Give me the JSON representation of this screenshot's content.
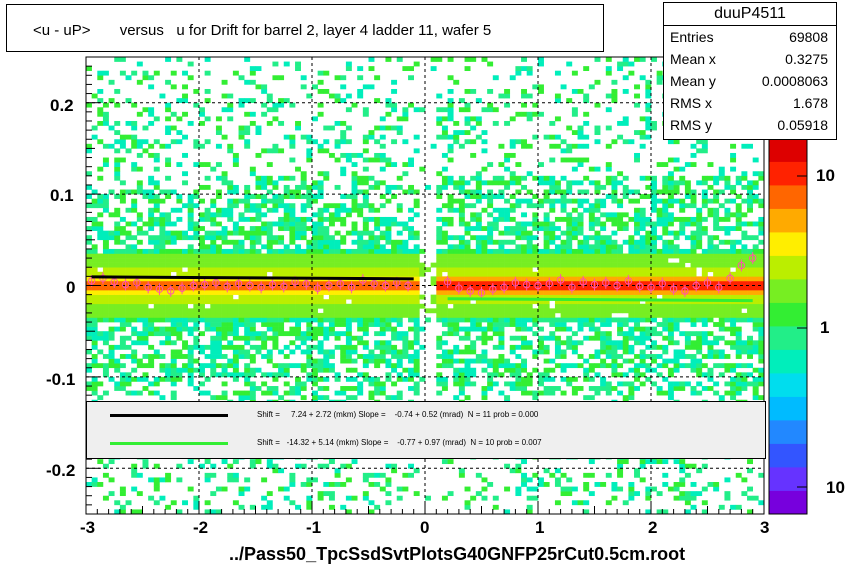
{
  "title": "<u - uP>       versus   u for Drift for barrel 2, layer 4 ladder 11, wafer 5",
  "footer": "../Pass50_TpcSsdSvtPlotsG40GNFP25rCut0.5cm.root",
  "stats": {
    "name": "duuP4511",
    "rows": [
      {
        "key": "Entries",
        "value": "69808"
      },
      {
        "key": "Mean x",
        "value": "0.3275"
      },
      {
        "key": "Mean y",
        "value": "0.0008063"
      },
      {
        "key": "RMS x",
        "value": "1.678"
      },
      {
        "key": "RMS y",
        "value": "0.05918"
      }
    ]
  },
  "legend": {
    "entries": [
      {
        "color": "#000000",
        "text": "Shift =     7.24 + 2.72 (mkm) Slope =    -0.74 + 0.52 (mrad)  N = 11 prob = 0.000"
      },
      {
        "color": "#33ee33",
        "text": "Shift =   -14.32 + 5.14 (mkm) Slope =    -0.77 + 0.97 (mrad)  N = 10 prob = 0.007"
      }
    ]
  },
  "colors": {
    "palette": [
      "#7700dd",
      "#6633ff",
      "#3355ff",
      "#2288ff",
      "#00bbff",
      "#00ddee",
      "#00eebb",
      "#22ee88",
      "#33ee33",
      "#77ee22",
      "#bbee00",
      "#ffee00",
      "#ffaa00",
      "#ff6600",
      "#ff2200",
      "#dd0000"
    ],
    "fit_line_1": "#000000",
    "fit_line_2": "#33ee33",
    "profile_markers": "#ff55aa"
  },
  "chart_data": {
    "type": "heatmap",
    "x_axis": {
      "range": [
        -3,
        3
      ],
      "ticks": [
        -3,
        -2,
        -1,
        0,
        1,
        2,
        3
      ],
      "tick_labels": [
        "-3",
        "-2",
        "-1",
        "0",
        "1",
        "2",
        "3"
      ]
    },
    "y_axis": {
      "range": [
        -0.25,
        0.25
      ],
      "ticks": [
        -0.2,
        -0.1,
        0,
        0.1,
        0.2
      ],
      "tick_labels": [
        "-0.2",
        "-0.1",
        "0",
        "0.1",
        "0.2"
      ]
    },
    "z_axis": {
      "scale": "log",
      "tick_labels": [
        "10",
        "1",
        "10"
      ]
    },
    "grid": true,
    "profile_left": {
      "x": [
        -2.95,
        -2.85,
        -2.75,
        -2.65,
        -2.55,
        -2.45,
        -2.35,
        -2.25,
        -2.15,
        -2.05,
        -1.95,
        -1.85,
        -1.75,
        -1.65,
        -1.55,
        -1.45,
        -1.35,
        -1.25,
        -1.15,
        -1.05,
        -0.95,
        -0.85,
        -0.75,
        -0.65,
        -0.55,
        -0.45,
        -0.35,
        -0.25,
        -0.15
      ],
      "y": [
        0.005,
        0.008,
        0.004,
        0.001,
        0.003,
        -0.002,
        -0.004,
        -0.006,
        -0.003,
        0.0,
        0.001,
        0.003,
        -0.001,
        0.002,
        0.0,
        -0.002,
        0.001,
        -0.001,
        0.004,
        0.002,
        -0.003,
        0.0,
        0.002,
        -0.002,
        0.006,
        0.002,
        0.0,
        0.003,
        0.0
      ]
    },
    "profile_right": {
      "x": [
        0.2,
        0.3,
        0.4,
        0.5,
        0.6,
        0.7,
        0.8,
        0.9,
        1.0,
        1.1,
        1.2,
        1.3,
        1.4,
        1.5,
        1.6,
        1.7,
        1.8,
        1.9,
        2.0,
        2.1,
        2.2,
        2.3,
        2.4,
        2.5,
        2.6,
        2.7,
        2.8,
        2.9
      ],
      "y": [
        0.004,
        -0.003,
        -0.006,
        -0.008,
        -0.004,
        -0.002,
        0.003,
        0.001,
        0.0,
        0.002,
        0.006,
        -0.002,
        0.004,
        0.001,
        0.003,
        0.0,
        0.005,
        -0.001,
        -0.002,
        0.002,
        -0.004,
        -0.006,
        0.0,
        0.003,
        -0.002,
        0.008,
        0.022,
        0.03
      ]
    },
    "fit_left": {
      "x_range": [
        -2.95,
        -0.1
      ],
      "shift": 0.00724,
      "slope": -0.00074
    },
    "fit_right": {
      "x_range": [
        0.2,
        2.9
      ],
      "shift": -0.01432,
      "slope": -0.00077
    }
  }
}
